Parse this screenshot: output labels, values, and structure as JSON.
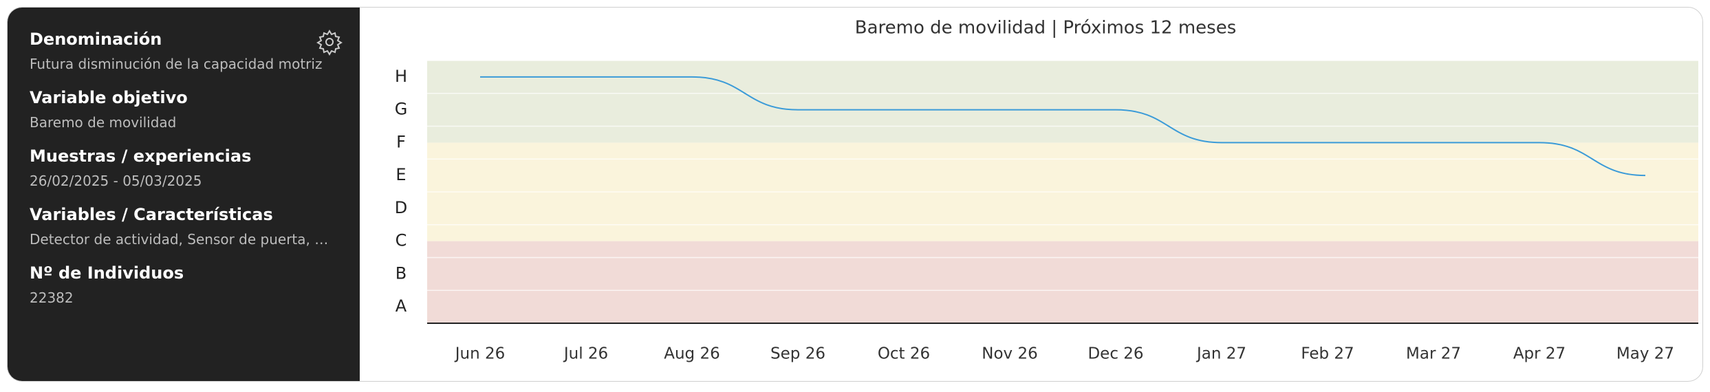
{
  "sidebar": {
    "fields": [
      {
        "label": "Denominación",
        "value": "Futura disminución de la capacidad motriz"
      },
      {
        "label": "Variable objetivo",
        "value": "Baremo de movilidad"
      },
      {
        "label": "Muestras / experiencias",
        "value": "26/02/2025 - 05/03/2025"
      },
      {
        "label": "Variables / Características",
        "value": "Detector de actividad, Sensor de puerta, …"
      },
      {
        "label": "Nº de Individuos",
        "value": "22382"
      }
    ]
  },
  "chart_data": {
    "type": "line",
    "title": "Baremo de movilidad | Próximos 12 meses",
    "categories": [
      "Jun 26",
      "Jul 26",
      "Aug 26",
      "Sep 26",
      "Oct 26",
      "Nov 26",
      "Dec 26",
      "Jan 27",
      "Feb 27",
      "Mar 27",
      "Apr 27",
      "May 27"
    ],
    "series": [
      {
        "color": "#3b9bd8",
        "values": [
          8,
          8,
          8,
          7,
          7,
          7,
          7,
          6,
          6,
          6,
          6,
          5
        ]
      }
    ],
    "ylim": [
      0.5,
      8.5
    ],
    "yticks": [
      {
        "value": 1,
        "label": "A"
      },
      {
        "value": 2,
        "label": "B"
      },
      {
        "value": 3,
        "label": "C"
      },
      {
        "value": 4,
        "label": "D"
      },
      {
        "value": 5,
        "label": "E"
      },
      {
        "value": 6,
        "label": "F"
      },
      {
        "value": 7,
        "label": "G"
      },
      {
        "value": 8,
        "label": "H"
      }
    ],
    "bands": [
      {
        "from": 0.5,
        "to": 3,
        "color": "#f1dbd7"
      },
      {
        "from": 3,
        "to": 6,
        "color": "#faf4dc"
      },
      {
        "from": 6,
        "to": 8.5,
        "color": "#e9eddd"
      }
    ],
    "grid": true
  }
}
